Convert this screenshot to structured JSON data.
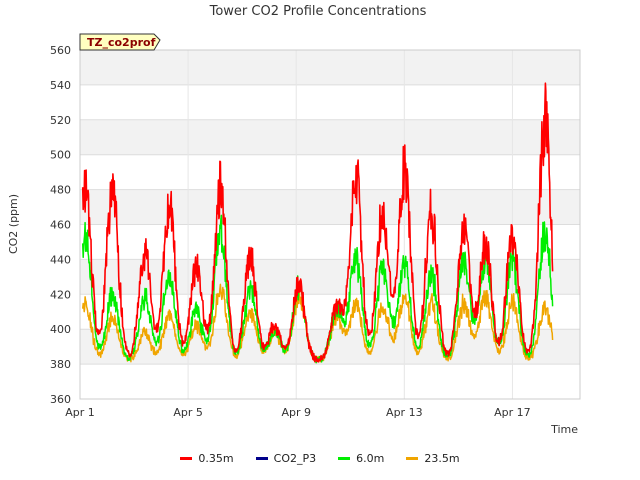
{
  "chart_data": {
    "type": "line",
    "title": "Tower CO2 Profile Concentrations",
    "site_tag": "TZ_co2prof",
    "xlabel": "Time",
    "ylabel": "CO2 (ppm)",
    "ylim": [
      360,
      560
    ],
    "yticks": [
      360,
      380,
      400,
      420,
      440,
      460,
      480,
      500,
      520,
      540,
      560
    ],
    "xlim": [
      1,
      19.5
    ],
    "xticks": [
      {
        "day": 1,
        "label": "Apr 1"
      },
      {
        "day": 5,
        "label": "Apr 5"
      },
      {
        "day": 9,
        "label": "Apr 9"
      },
      {
        "day": 13,
        "label": "Apr 13"
      },
      {
        "day": 17,
        "label": "Apr 17"
      }
    ],
    "x_unit": "day of April",
    "daily_peaks": [
      {
        "day": 1.2,
        "v035": 497,
        "v60": 465,
        "v235": 418
      },
      {
        "day": 2.2,
        "v035": 495,
        "v60": 425,
        "v235": 410
      },
      {
        "day": 3.4,
        "v035": 455,
        "v60": 423,
        "v235": 400
      },
      {
        "day": 4.3,
        "v035": 484,
        "v60": 440,
        "v235": 412
      },
      {
        "day": 5.3,
        "v035": 445,
        "v60": 415,
        "v235": 405
      },
      {
        "day": 6.2,
        "v035": 497,
        "v60": 470,
        "v235": 430
      },
      {
        "day": 7.3,
        "v035": 450,
        "v60": 428,
        "v235": 415
      },
      {
        "day": 8.2,
        "v035": 405,
        "v60": 402,
        "v235": 400
      },
      {
        "day": 9.1,
        "v035": 432,
        "v60": 430,
        "v235": 425
      },
      {
        "day": 10.5,
        "v035": 418,
        "v60": 415,
        "v235": 410
      },
      {
        "day": 11.2,
        "v035": 506,
        "v60": 450,
        "v235": 420
      },
      {
        "day": 12.2,
        "v035": 481,
        "v60": 445,
        "v235": 418
      },
      {
        "day": 13.0,
        "v035": 510,
        "v60": 445,
        "v235": 425
      },
      {
        "day": 14.0,
        "v035": 480,
        "v60": 440,
        "v235": 420
      },
      {
        "day": 15.2,
        "v035": 470,
        "v60": 450,
        "v235": 420
      },
      {
        "day": 16.0,
        "v035": 460,
        "v60": 450,
        "v235": 425
      },
      {
        "day": 17.0,
        "v035": 467,
        "v60": 448,
        "v235": 420
      },
      {
        "day": 18.2,
        "v035": 544,
        "v60": 470,
        "v235": 418
      }
    ],
    "nightly_min": 382,
    "series": [
      {
        "name": "0.35m",
        "key": "v035",
        "color": "#ff0000"
      },
      {
        "name": "CO2_P3",
        "key": null,
        "color": "#00008b"
      },
      {
        "name": "6.0m",
        "key": "v60",
        "color": "#00ee00"
      },
      {
        "name": "23.5m",
        "key": "v235",
        "color": "#f0a500"
      }
    ]
  }
}
